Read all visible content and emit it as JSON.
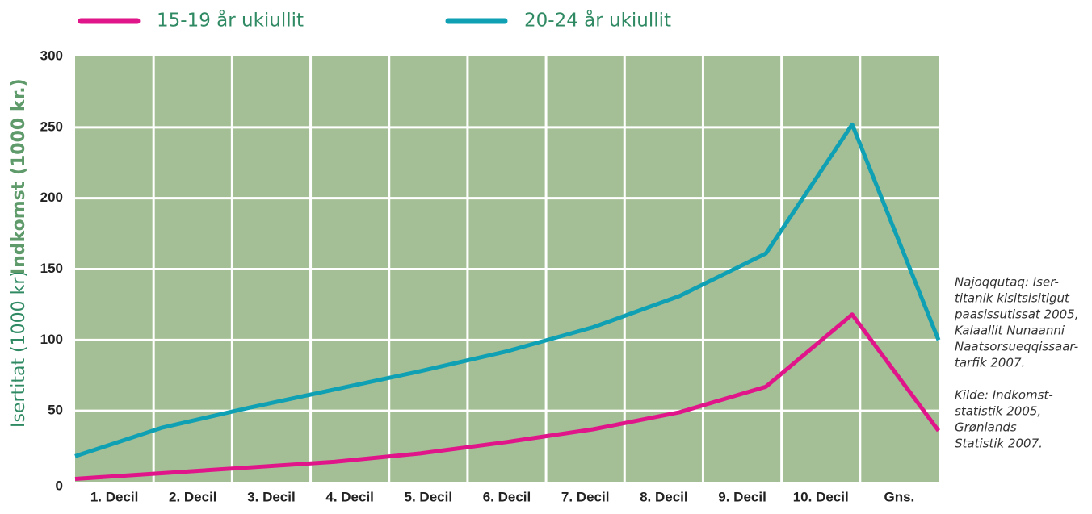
{
  "chart_data": {
    "type": "line",
    "y_axis_label": [
      "Isertitat (1000 kr)",
      "Indkomst (1000 kr.)"
    ],
    "categories": [
      "1. Decil",
      "2. Decil",
      "3. Decil",
      "4. Decil",
      "5. Decil",
      "6. Decil",
      "7. Decil",
      "8. Decil",
      "9. Decil",
      "10. Decil",
      "Gns."
    ],
    "series": [
      {
        "name": "15-19 år ukiullit",
        "color": "#e0158a",
        "values": [
          2,
          6,
          10,
          14,
          20,
          28,
          37,
          49,
          67,
          118,
          36
        ]
      },
      {
        "name": "20-24 år ukiullit",
        "color": "#0fa0b4",
        "values": [
          18,
          38,
          52,
          65,
          78,
          92,
          109,
          131,
          161,
          252,
          100
        ]
      }
    ],
    "ylim": [
      0,
      300
    ],
    "yticks": [
      0,
      50,
      100,
      150,
      200,
      250,
      300
    ],
    "grid": true,
    "background": "#a4bf95",
    "source_notes": [
      [
        "Najoqqutaq: Iser-",
        "titanik kisitsisitigut",
        "paasissutissat 2005,",
        "Kalaallit Nunaanni",
        "Naatsorsueqqissaar-",
        "tarfik 2007."
      ],
      [
        "Kilde: Indkomst-",
        "statistik 2005,",
        "Grønlands",
        "Statistik 2007."
      ]
    ]
  }
}
